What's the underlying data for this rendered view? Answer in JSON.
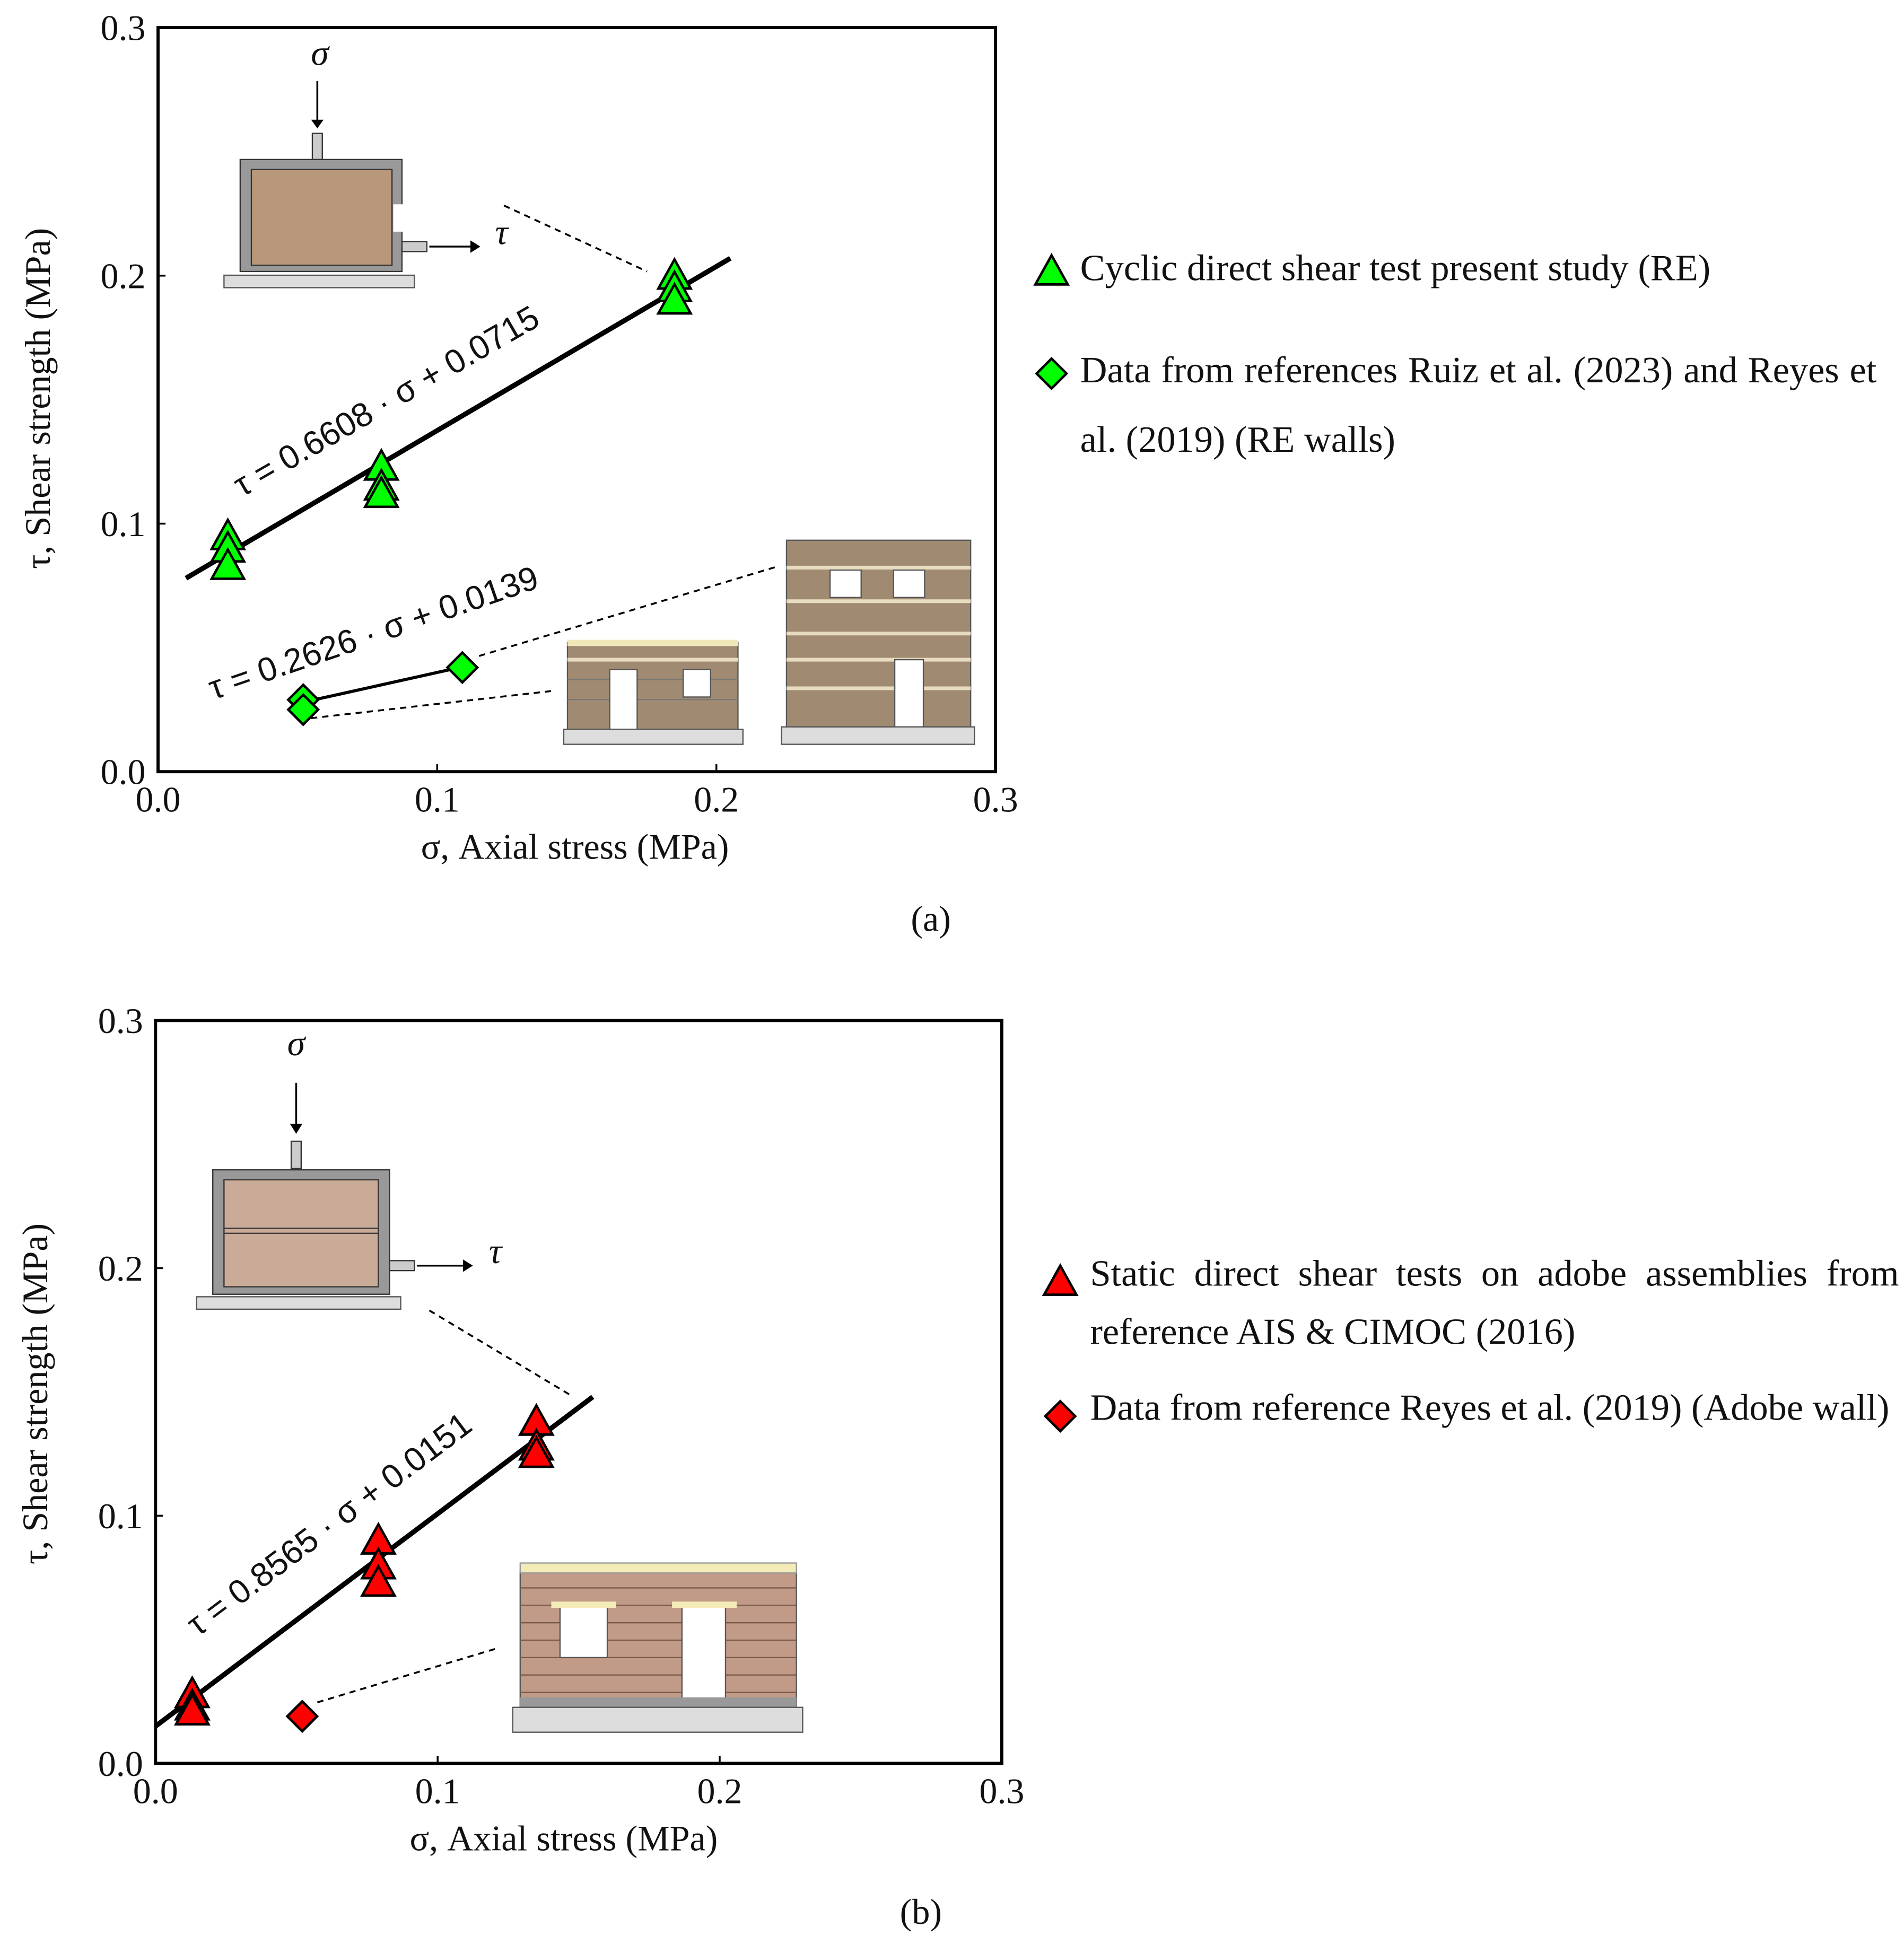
{
  "chart_data": [
    {
      "type": "scatter",
      "panel_label": "(a)",
      "x_label": "σ, Axial stress (MPa)",
      "y_label": "τ, Shear strength (MPa)",
      "xlim": [
        0,
        0.3
      ],
      "ylim": [
        0,
        0.3
      ],
      "xticks": [
        {
          "value": 0,
          "label": "0.0"
        },
        0.1,
        0.2,
        0.3
      ],
      "yticks": [
        {
          "value": 0,
          "label": "0.0"
        },
        0.1,
        0.2,
        0.3
      ],
      "annotations": [
        "σ",
        "τ"
      ],
      "series": [
        {
          "name": "Cyclic direct shear test present study (RE)",
          "color": "#00ff00",
          "marker": "triangle",
          "x": [
            0.025,
            0.025,
            0.025,
            0.08,
            0.08,
            0.08,
            0.185,
            0.185,
            0.185
          ],
          "values": [
            0.095,
            0.09,
            0.083,
            0.123,
            0.115,
            0.112,
            0.2,
            0.195,
            0.19
          ]
        },
        {
          "name": "Data from references Ruiz et al. (2023) and Reyes et al. (2019) (RE walls)",
          "color": "#00ff00",
          "marker": "diamond",
          "x": [
            0.052,
            0.052,
            0.109
          ],
          "values": [
            0.029,
            0.025,
            0.042
          ]
        }
      ],
      "fits": [
        {
          "label": "τ = 0.6608 · σ + 0.0715",
          "x": [
            0.01,
            0.205
          ],
          "values": [
            0.078,
            0.207
          ]
        },
        {
          "label": "τ = 0.2626 · σ + 0.0139",
          "x": [
            0.052,
            0.108
          ],
          "values": [
            0.028,
            0.042
          ]
        }
      ]
    },
    {
      "type": "scatter",
      "panel_label": "(b)",
      "x_label": "σ, Axial stress (MPa)",
      "y_label": "τ, Shear strength (MPa)",
      "xlim": [
        0,
        0.3
      ],
      "ylim": [
        0,
        0.3
      ],
      "xticks": [
        {
          "value": 0,
          "label": "0.0"
        },
        0.1,
        0.2,
        0.3
      ],
      "yticks": [
        {
          "value": 0,
          "label": "0.0"
        },
        0.1,
        0.2,
        0.3
      ],
      "annotations": [
        "σ",
        "τ"
      ],
      "series": [
        {
          "name": "Static direct shear tests on adobe assemblies from reference AIS & CIMOC (2016)",
          "color": "#ff0000",
          "marker": "triangle",
          "x": [
            0.013,
            0.013,
            0.013,
            0.079,
            0.079,
            0.079,
            0.135,
            0.135,
            0.135
          ],
          "values": [
            0.028,
            0.023,
            0.021,
            0.09,
            0.08,
            0.073,
            0.138,
            0.128,
            0.125
          ]
        },
        {
          "name": "Data from reference Reyes et al. (2019) (Adobe wall)",
          "color": "#ff0000",
          "marker": "diamond",
          "x": [
            0.052
          ],
          "values": [
            0.019
          ]
        }
      ],
      "fits": [
        {
          "label": "τ = 0.8565 · σ + 0.0151",
          "x": [
            0,
            0.155
          ],
          "values": [
            0.015,
            0.148
          ]
        }
      ]
    }
  ]
}
